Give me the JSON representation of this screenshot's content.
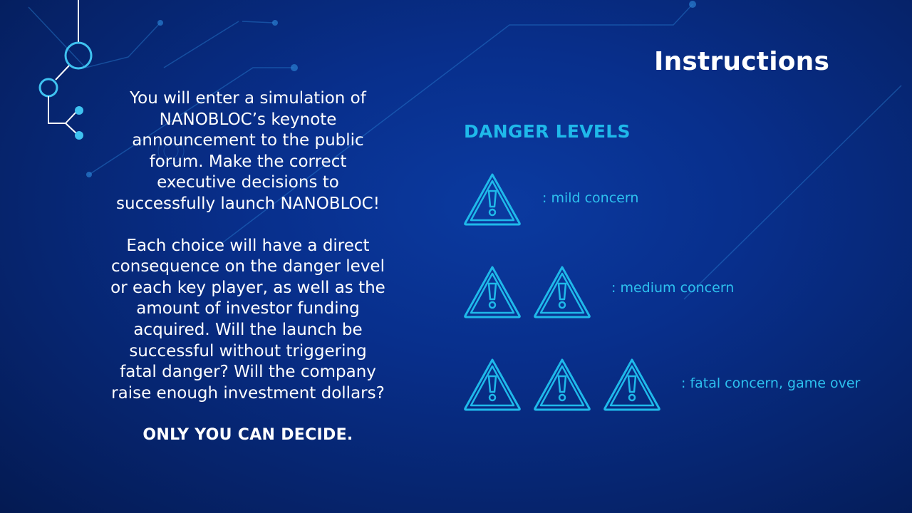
{
  "page": {
    "title": "Instructions"
  },
  "intro": {
    "paragraph1": "You will enter a simulation of\nNANOBLOC’s keynote\nannouncement to the public\nforum. Make the correct\nexecutive decisions  to\nsuccessfully launch NANOBLOC!",
    "paragraph2": "Each choice will have a direct\nconsequence on the danger level\nor each key player, as well as the\namount of investor funding\nacquired. Will the launch be\nsuccessful without triggering\nfatal danger? Will the company\nraise enough investment dollars?",
    "call_to_action": "ONLY YOU CAN DECIDE."
  },
  "danger": {
    "heading": "DANGER LEVELS",
    "levels": [
      {
        "icon": "warning-triangle-icon",
        "count": 1,
        "label": ": mild concern"
      },
      {
        "icon": "warning-triangle-icon",
        "count": 2,
        "label": ": medium concern"
      },
      {
        "icon": "warning-triangle-icon",
        "count": 3,
        "label": ": fatal concern, game over"
      }
    ]
  },
  "colors": {
    "background": "#082f8c",
    "accent": "#1fb9ea",
    "text": "#ffffff"
  }
}
